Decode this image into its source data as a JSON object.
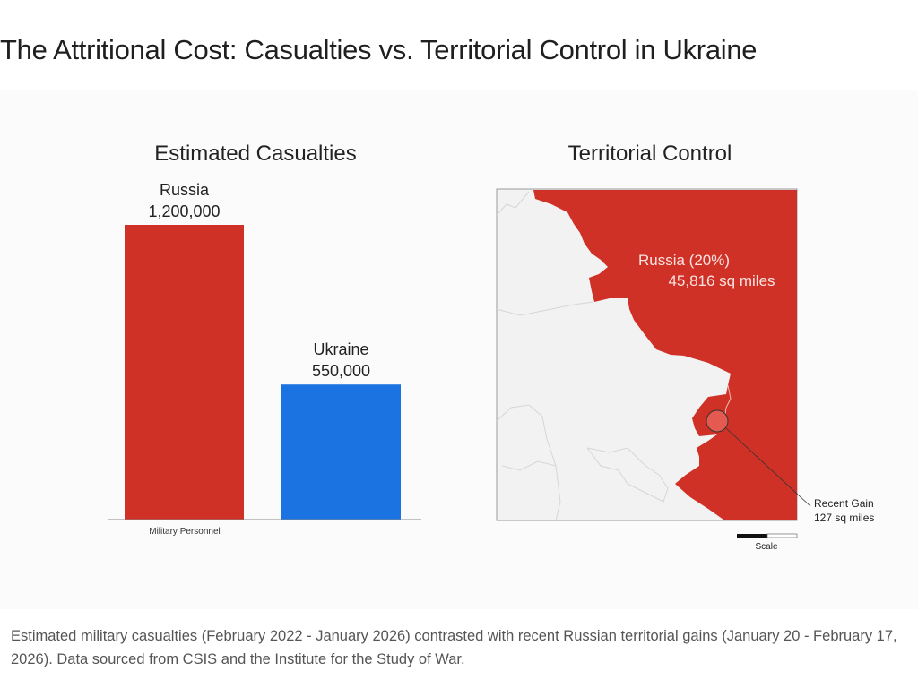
{
  "title": "The Attritional Cost: Casualties vs. Territorial Control in Ukraine",
  "caption": "Estimated military casualties (February 2022 - January 2026) contrasted with recent Russian territorial gains (January 20 - February 17, 2026). Data sourced from CSIS and the Institute for the Study of War.",
  "chart_data": [
    {
      "type": "bar",
      "title": "Estimated Casualties",
      "xlabel": "Military Personnel",
      "categories": [
        "Russia",
        "Ukraine"
      ],
      "values": [
        1200000,
        550000
      ],
      "value_labels": [
        "1,200,000",
        "550,000"
      ],
      "colors": [
        "#d03126",
        "#1a73e0"
      ],
      "grid": false
    },
    {
      "type": "map",
      "title": "Territorial Control",
      "region_label": "Russia (20%)",
      "region_value": "45,816 sq miles",
      "region_color": "#d03126",
      "callout_label": "Recent Gain",
      "callout_value": "127 sq miles",
      "scale_label": "Scale"
    }
  ]
}
